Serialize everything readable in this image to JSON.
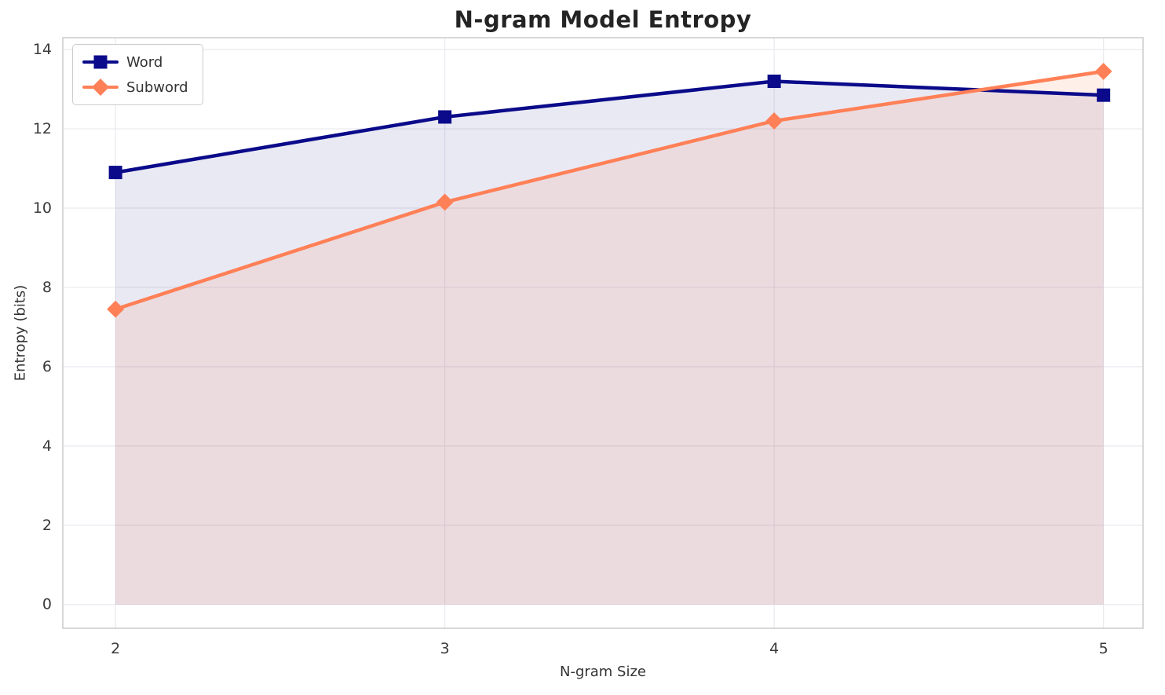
{
  "chart_data": {
    "type": "line",
    "title": "N-gram Model Entropy",
    "xlabel": "N-gram Size",
    "ylabel": "Entropy (bits)",
    "x": [
      2,
      3,
      4,
      5
    ],
    "series": [
      {
        "name": "Word",
        "values": [
          10.9,
          12.3,
          13.2,
          12.85
        ],
        "color": "#0a0a8a",
        "marker": "square",
        "fill_to_zero": true,
        "fill_opacity": 0.09
      },
      {
        "name": "Subword",
        "values": [
          7.45,
          10.15,
          12.2,
          13.45
        ],
        "color": "#FF8057",
        "marker": "diamond",
        "fill_to_zero": true,
        "fill_opacity": 0.13
      }
    ],
    "xticks": [
      2,
      3,
      4,
      5
    ],
    "yticks": [
      0,
      2,
      4,
      6,
      8,
      10,
      12,
      14
    ],
    "xlim": [
      1.84,
      5.12
    ],
    "ylim": [
      -0.6,
      14.3
    ],
    "grid": true,
    "grid_color": "#e9e9ef",
    "frame_color": "#cccccc",
    "tick_label_color": "#3a3a3a",
    "legend_position": "upper left"
  }
}
